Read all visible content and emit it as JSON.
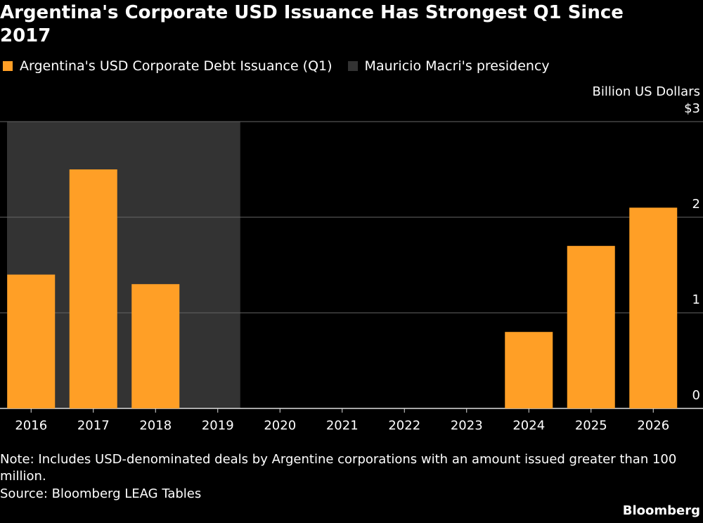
{
  "chart_data": {
    "type": "bar",
    "title": "Argentina's Corporate USD Issuance Has Strongest Q1 Since 2017",
    "y_axis_label": "Billion US Dollars",
    "categories": [
      "2016",
      "2017",
      "2018",
      "2019",
      "2020",
      "2021",
      "2022",
      "2023",
      "2024",
      "2025",
      "2026"
    ],
    "series": [
      {
        "name": "Argentina's USD Corporate Debt Issuance (Q1)",
        "color": "#ff9f26",
        "values": [
          1.4,
          2.5,
          1.3,
          0,
          0,
          0,
          0,
          0,
          0.8,
          1.7,
          2.1
        ]
      }
    ],
    "highlight": {
      "name": "Mauricio Macri's presidency",
      "color": "#333333",
      "from": "2016",
      "to": "2019"
    },
    "ylim": [
      0,
      3
    ],
    "yticks": [
      0,
      1,
      2,
      {
        "value": 3,
        "label": "$3"
      }
    ],
    "grid": true,
    "note": "Note: Includes USD-denominated deals by Argentine corporations with an amount issued greater than 100 million.",
    "source": "Source: Bloomberg LEAG Tables",
    "brand": "Bloomberg"
  }
}
